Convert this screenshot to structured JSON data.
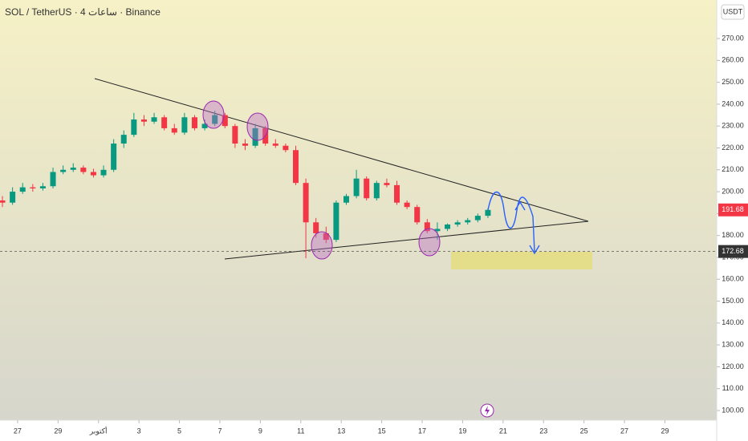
{
  "chart_data": {
    "type": "candlestick",
    "title": "SOL / TetherUS · 4 ساعات · Binance",
    "currency": "USDT",
    "up_color": "#089981",
    "down_color": "#f23645",
    "grid": false,
    "x": [
      -0.75,
      -0.25,
      0.25,
      0.75,
      1.25,
      1.75,
      2.25,
      2.75,
      3.25,
      3.75,
      4.25,
      4.75,
      5.25,
      5.75,
      6.25,
      6.75,
      7.25,
      7.75,
      8.25,
      8.75,
      9.25,
      9.75,
      10.25,
      10.75,
      11.25,
      11.75,
      12.25,
      12.75,
      13.25,
      13.75,
      14.25,
      14.75,
      15.25,
      15.75,
      16.25,
      16.75,
      17.25,
      17.75,
      18.25,
      18.75,
      19.25,
      19.75,
      20.25,
      20.75,
      21.25,
      21.75,
      22.25,
      22.75,
      23.25
    ],
    "open": [
      196,
      195,
      200,
      202,
      201.5,
      202.5,
      209,
      210,
      211,
      209,
      207.5,
      210,
      222,
      226,
      233,
      232,
      234,
      229,
      227,
      234,
      229,
      231,
      235,
      230,
      222,
      221,
      229,
      222,
      221,
      219,
      204,
      186,
      181,
      178,
      195,
      198,
      206,
      197,
      204,
      203,
      195,
      193,
      186,
      182,
      183,
      185,
      186,
      187,
      189
    ],
    "high": [
      198,
      202,
      204,
      203.5,
      204,
      211,
      212,
      213,
      212,
      210.5,
      212,
      224,
      228,
      236,
      235,
      236,
      235,
      231,
      236,
      235,
      233,
      237,
      236,
      231,
      224,
      231,
      230,
      224,
      222,
      221,
      206,
      188,
      184,
      196,
      199,
      210,
      207,
      205,
      206,
      205,
      196,
      194,
      187.5,
      186,
      185.5,
      187,
      188,
      190,
      192.5
    ],
    "low": [
      193,
      194,
      199,
      200,
      200.5,
      201.5,
      208,
      209,
      208,
      206.5,
      206.5,
      209,
      220,
      225,
      230,
      231,
      228,
      226,
      226,
      228,
      228,
      230,
      229,
      220,
      219,
      220,
      221,
      220,
      218,
      203,
      169.6,
      179,
      176.5,
      177,
      194,
      197,
      196,
      196,
      202,
      194,
      192,
      185,
      181,
      178,
      182,
      184,
      185,
      186,
      188
    ],
    "close": [
      195,
      200,
      202,
      201.5,
      202.5,
      209,
      210,
      211,
      209,
      207.5,
      210,
      222,
      226,
      233,
      232,
      234,
      229,
      227,
      234,
      229,
      231,
      235,
      230,
      222,
      221,
      229,
      222,
      221,
      219,
      204,
      186,
      181,
      178,
      195,
      198,
      206,
      197,
      204,
      203,
      195,
      193,
      186,
      182,
      183,
      185,
      186,
      187,
      189,
      191.68
    ],
    "xlim": [
      -0.87,
      34.56
    ],
    "xticks": [
      {
        "value": 0,
        "label": "27"
      },
      {
        "value": 2,
        "label": "29"
      },
      {
        "value": 4,
        "label": "أكتوبر"
      },
      {
        "value": 6,
        "label": "3"
      },
      {
        "value": 8,
        "label": "5"
      },
      {
        "value": 10,
        "label": "7"
      },
      {
        "value": 12,
        "label": "9"
      },
      {
        "value": 14,
        "label": "11"
      },
      {
        "value": 16,
        "label": "13"
      },
      {
        "value": 18,
        "label": "15"
      },
      {
        "value": 20,
        "label": "17"
      },
      {
        "value": 22,
        "label": "19"
      },
      {
        "value": 24,
        "label": "21"
      },
      {
        "value": 26,
        "label": "23"
      },
      {
        "value": 28,
        "label": "25"
      },
      {
        "value": 30,
        "label": "27"
      },
      {
        "value": 32,
        "label": "29"
      }
    ],
    "ylim": [
      95.6,
      287.6
    ],
    "yticks": [
      {
        "value": 100,
        "label": "100.00"
      },
      {
        "value": 110,
        "label": "110.00"
      },
      {
        "value": 120,
        "label": "120.00"
      },
      {
        "value": 130,
        "label": "130.00"
      },
      {
        "value": 140,
        "label": "140.00"
      },
      {
        "value": 150,
        "label": "150.00"
      },
      {
        "value": 160,
        "label": "160.00"
      },
      {
        "value": 170,
        "label": "170.00"
      },
      {
        "value": 180,
        "label": "180.00"
      },
      {
        "value": 190,
        "label": "190.00"
      },
      {
        "value": 200,
        "label": "200.00"
      },
      {
        "value": 210,
        "label": "210.00"
      },
      {
        "value": 220,
        "label": "220.00"
      },
      {
        "value": 230,
        "label": "230.00"
      },
      {
        "value": 240,
        "label": "240.00"
      },
      {
        "value": 250,
        "label": "250.00"
      },
      {
        "value": 260,
        "label": "260.00"
      },
      {
        "value": 270,
        "label": "270.00"
      }
    ],
    "last_price": 191.68,
    "marker_price": 172.68
  }
}
